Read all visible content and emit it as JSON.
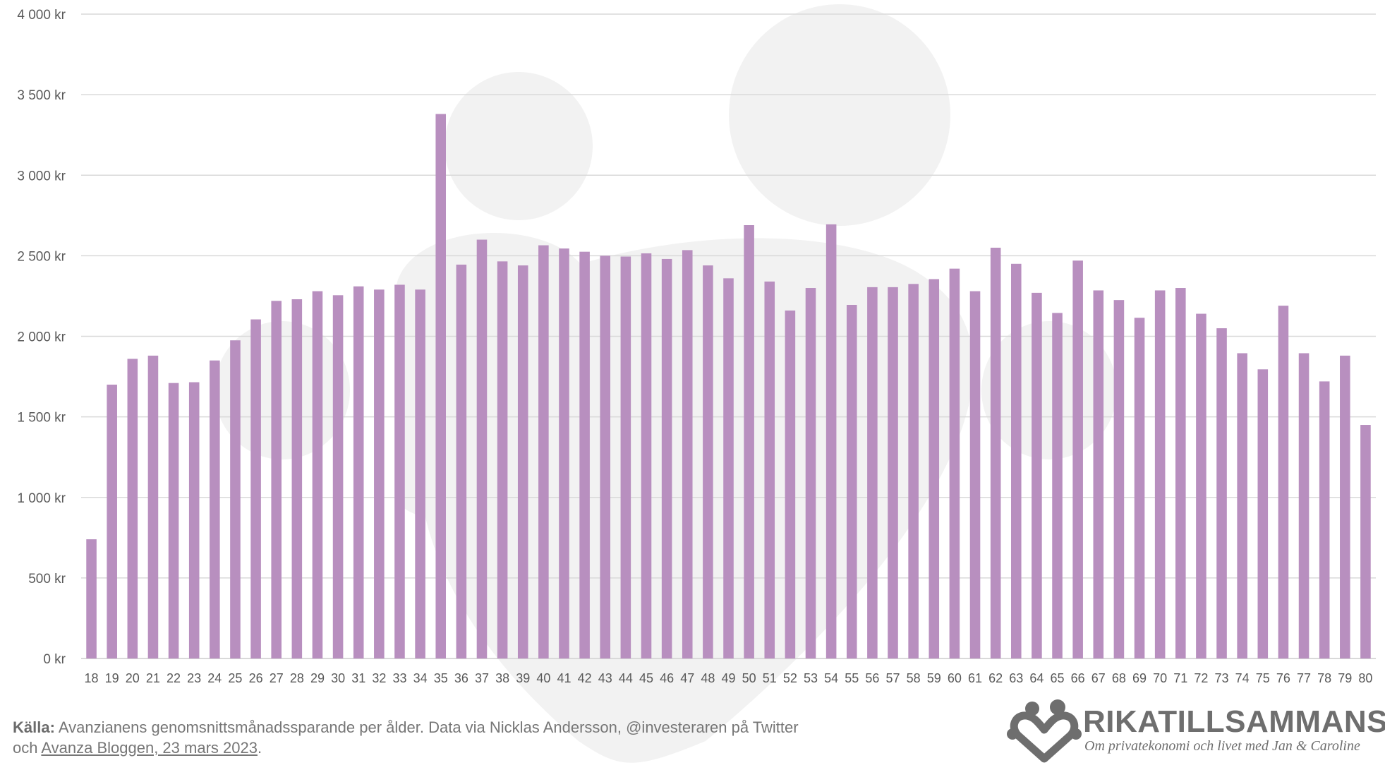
{
  "chart_data": {
    "type": "bar",
    "categories": [
      "18",
      "19",
      "20",
      "21",
      "22",
      "23",
      "24",
      "25",
      "26",
      "27",
      "28",
      "29",
      "30",
      "31",
      "32",
      "33",
      "34",
      "35",
      "36",
      "37",
      "38",
      "39",
      "40",
      "41",
      "42",
      "43",
      "44",
      "45",
      "46",
      "47",
      "48",
      "49",
      "50",
      "51",
      "52",
      "53",
      "54",
      "55",
      "56",
      "57",
      "58",
      "59",
      "60",
      "61",
      "62",
      "63",
      "64",
      "65",
      "66",
      "67",
      "68",
      "69",
      "70",
      "71",
      "72",
      "73",
      "74",
      "75",
      "76",
      "77",
      "78",
      "79",
      "80"
    ],
    "values": [
      740,
      1700,
      1860,
      1880,
      1710,
      1715,
      1850,
      1975,
      2105,
      2220,
      2230,
      2280,
      2255,
      2310,
      2290,
      2320,
      2290,
      3380,
      2445,
      2600,
      2465,
      2440,
      2565,
      2545,
      2525,
      2500,
      2495,
      2515,
      2480,
      2535,
      2440,
      2360,
      2690,
      2340,
      2160,
      2300,
      2695,
      2195,
      2305,
      2305,
      2325,
      2355,
      2420,
      2280,
      2550,
      2450,
      2270,
      2145,
      2470,
      2285,
      2225,
      2115,
      2285,
      2300,
      2140,
      2050,
      1895,
      1795,
      2190,
      1895,
      1720,
      1880,
      1450
    ],
    "yticks": [
      "0 kr",
      "500 kr",
      "1 000 kr",
      "1 500 kr",
      "2 000 kr",
      "2 500 kr",
      "3 000 kr",
      "3 500 kr",
      "4 000 kr"
    ],
    "ylim": [
      0,
      4000
    ],
    "ystep": 500,
    "bar_color": "#b88fbf",
    "grid": true,
    "title": "",
    "xlabel": "",
    "ylabel": ""
  },
  "footer": {
    "source_label": "Källa:",
    "source_text": " Avanzianens genomsnittsmånadssparande per ålder. Data via Nicklas Andersson, @investeraren på Twitter",
    "line2_prefix": "och ",
    "link_text": "Avanza Bloggen, 23 mars 2023",
    "line2_suffix": "."
  },
  "logo": {
    "title": "RIKATILLSAMMANS",
    "tagline": "Om privatekonomi och livet med Jan & Caroline",
    "icon": "family-heart-icon",
    "color": "#6e6e6e"
  },
  "colors": {
    "background": "#ffffff",
    "watermark": "#f2f2f2",
    "grid": "#d9d9d9",
    "text": "#595959"
  }
}
